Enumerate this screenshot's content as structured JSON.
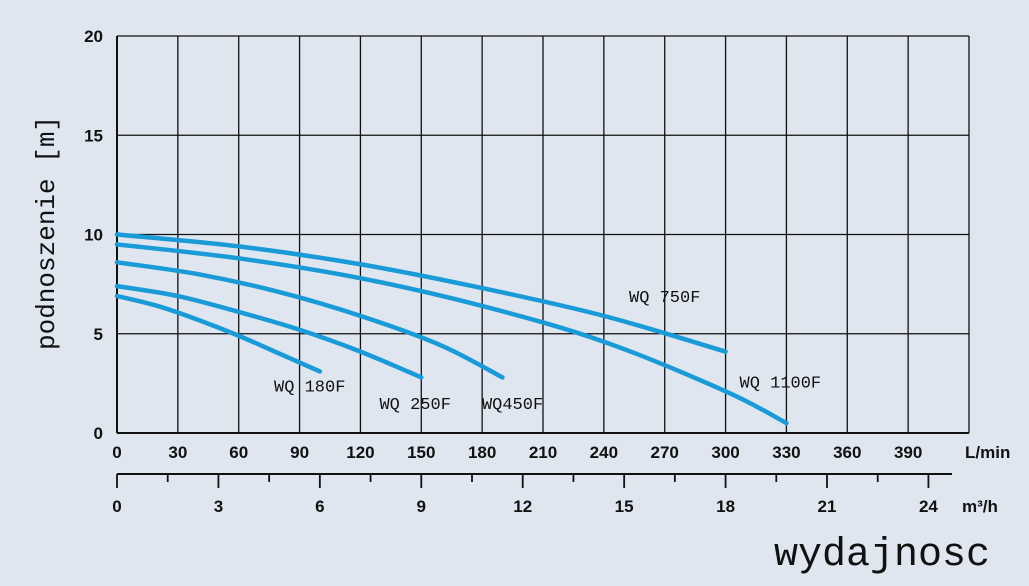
{
  "chart_data": {
    "type": "line",
    "ylabel": "podnoszenie  [m]",
    "xlabel": "wydajnosc",
    "ylim": [
      0,
      20
    ],
    "y_ticks": [
      "0",
      "5",
      "10",
      "15",
      "20"
    ],
    "x_axis_lmin": {
      "unit": "L/min",
      "range": [
        0,
        420
      ],
      "ticks": [
        "0",
        "30",
        "60",
        "90",
        "120",
        "150",
        "180",
        "210",
        "240",
        "270",
        "300",
        "330",
        "360",
        "390"
      ]
    },
    "x_axis_m3h": {
      "unit": "m³/h",
      "range": [
        0,
        25.2
      ],
      "ticks": [
        "0",
        "3",
        "6",
        "9",
        "12",
        "15",
        "18",
        "21",
        "24"
      ]
    },
    "grid": true,
    "colors": {
      "curve": "#1a9ad7",
      "grid": "#111111",
      "background": "#dfe6f0"
    },
    "series": [
      {
        "name": "WQ 180F",
        "x": [
          0,
          20,
          40,
          60,
          80,
          100
        ],
        "y": [
          6.9,
          6.4,
          5.7,
          4.9,
          4.0,
          3.1
        ]
      },
      {
        "name": "WQ 250F",
        "x": [
          0,
          30,
          60,
          90,
          120,
          150
        ],
        "y": [
          7.4,
          6.9,
          6.1,
          5.2,
          4.1,
          2.8
        ]
      },
      {
        "name": "WQ450F",
        "x": [
          0,
          40,
          80,
          120,
          160,
          190
        ],
        "y": [
          8.6,
          8.0,
          7.1,
          5.9,
          4.4,
          2.8
        ]
      },
      {
        "name": "WQ 1100F",
        "x": [
          0,
          60,
          120,
          180,
          240,
          300,
          330
        ],
        "y": [
          9.5,
          8.8,
          7.8,
          6.4,
          4.6,
          2.1,
          0.5
        ]
      },
      {
        "name": "WQ 750F",
        "x": [
          0,
          60,
          120,
          180,
          240,
          300
        ],
        "y": [
          10.0,
          9.4,
          8.5,
          7.3,
          5.9,
          4.1
        ]
      }
    ]
  }
}
